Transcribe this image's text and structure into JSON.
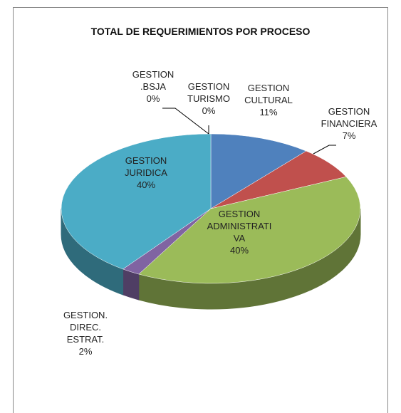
{
  "chart_data": {
    "type": "pie",
    "title": "TOTAL DE REQUERIMIENTOS POR PROCESO",
    "categories": [
      "GESTION .BSJA",
      "GESTION TURISMO",
      "GESTION CULTURAL",
      "GESTION FINANCIERA",
      "GESTION ADMINISTRATIVA",
      "GESTION. DIREC. ESTRAT.",
      "GESTION JURIDICA"
    ],
    "values": [
      0,
      0,
      11,
      7,
      40,
      2,
      40
    ],
    "value_labels": [
      "0%",
      "0%",
      "11%",
      "7%",
      "40%",
      "2%",
      "40%"
    ],
    "colors": [
      "#f79646",
      "#2c4d75",
      "#4f81bd",
      "#c0504d",
      "#9bbb59",
      "#8064a2",
      "#4bacc6"
    ]
  }
}
